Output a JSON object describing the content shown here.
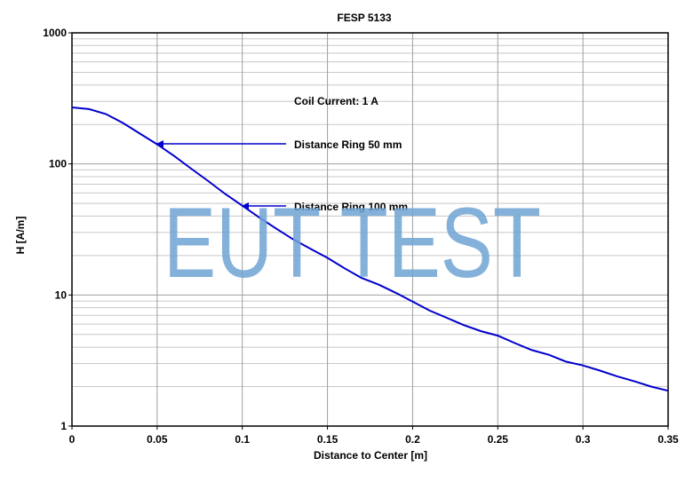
{
  "chart_data": {
    "type": "line",
    "title": "FESP 5133",
    "x_label": "Distance to Center [m]",
    "y_label": "H [A/m]",
    "x": [
      0,
      0.01,
      0.02,
      0.03,
      0.04,
      0.05,
      0.06,
      0.07,
      0.08,
      0.09,
      0.1,
      0.11,
      0.12,
      0.13,
      0.14,
      0.15,
      0.16,
      0.17,
      0.18,
      0.19,
      0.2,
      0.21,
      0.22,
      0.23,
      0.24,
      0.25,
      0.26,
      0.27,
      0.28,
      0.29,
      0.3,
      0.31,
      0.32,
      0.33,
      0.34,
      0.35
    ],
    "values": [
      270,
      262,
      240,
      205,
      170,
      141,
      115,
      92,
      74,
      59,
      48,
      39,
      32,
      26.5,
      22.5,
      19.2,
      16,
      13.5,
      12,
      10.4,
      8.9,
      7.6,
      6.7,
      5.9,
      5.3,
      4.9,
      4.3,
      3.8,
      3.5,
      3.1,
      2.9,
      2.65,
      2.4,
      2.2,
      2.0,
      1.86
    ],
    "color": "#0000cc",
    "xlim": [
      0,
      0.35
    ],
    "xticks": [
      0,
      0.05,
      0.1,
      0.15,
      0.2,
      0.25,
      0.3,
      0.35
    ],
    "ylim": [
      1,
      1000
    ],
    "yticks": [
      1,
      10,
      100,
      1000
    ],
    "log_y": true,
    "grid": true,
    "annotations": [
      "Coil Current: 1 A",
      "Distance Ring 50 mm",
      "Distance Ring 100 mm"
    ],
    "watermark": "EUT TEST"
  }
}
